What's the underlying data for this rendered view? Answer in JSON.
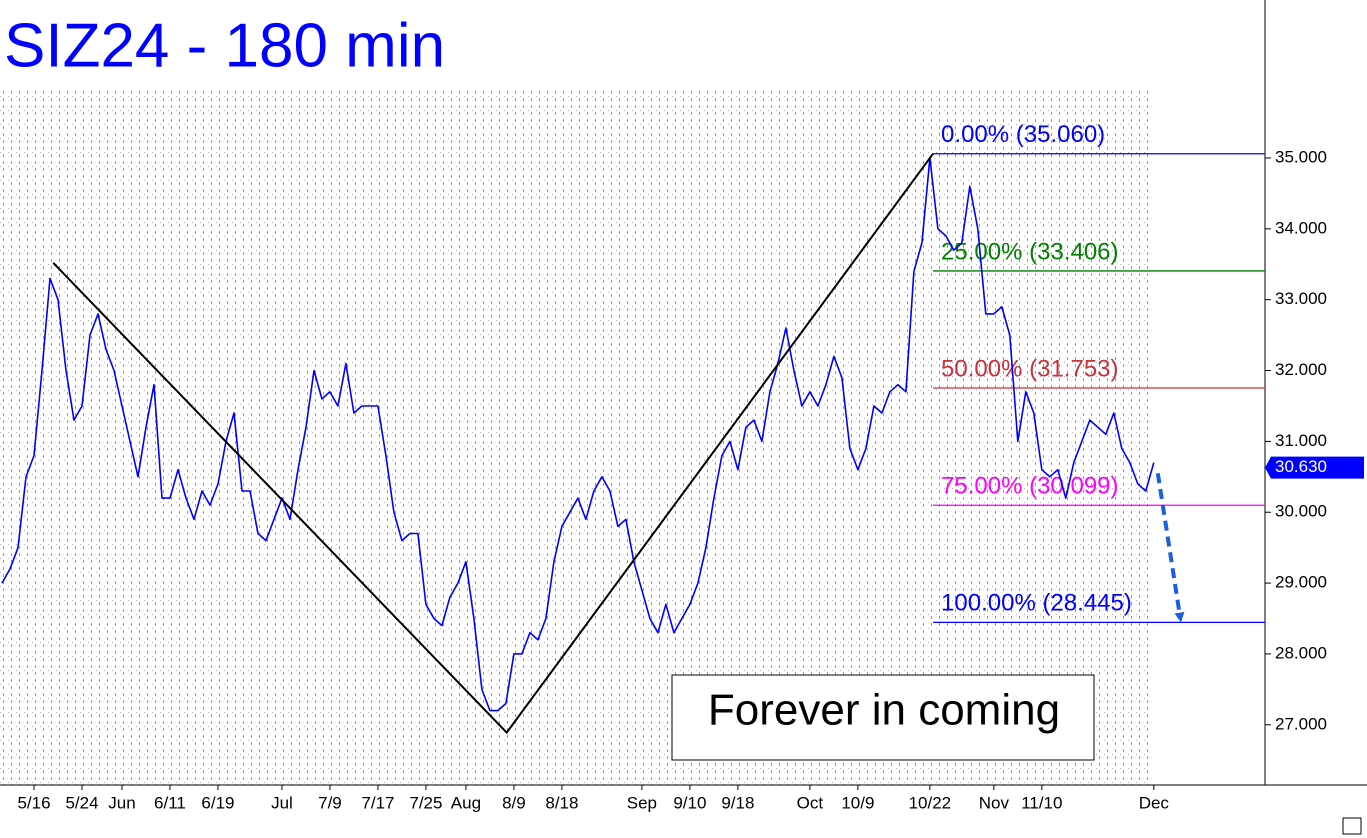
{
  "chart_data": {
    "type": "line",
    "title": "SIZ24 - 180 min",
    "annotation": "Forever in coming",
    "xlim": [
      -0.25,
      157.9
    ],
    "ylim": [
      26.15,
      37.23
    ],
    "yticks": [
      {
        "value": 27,
        "label": "27.000"
      },
      {
        "value": 28,
        "label": "28.000"
      },
      {
        "value": 29,
        "label": "29.000"
      },
      {
        "value": 30,
        "label": "30.000"
      },
      {
        "value": 31,
        "label": "31.000"
      },
      {
        "value": 32,
        "label": "32.000"
      },
      {
        "value": 33,
        "label": "33.000"
      },
      {
        "value": 34,
        "label": "34.000"
      },
      {
        "value": 35,
        "label": "35.000"
      }
    ],
    "xticks": [
      {
        "value": 4,
        "label": "5/16"
      },
      {
        "value": 10,
        "label": "5/24"
      },
      {
        "value": 15,
        "label": "Jun"
      },
      {
        "value": 21,
        "label": "6/11"
      },
      {
        "value": 27,
        "label": "6/19"
      },
      {
        "value": 35,
        "label": "Jul"
      },
      {
        "value": 41,
        "label": "7/9"
      },
      {
        "value": 47,
        "label": "7/17"
      },
      {
        "value": 53,
        "label": "7/25"
      },
      {
        "value": 58,
        "label": "Aug"
      },
      {
        "value": 64,
        "label": "8/9"
      },
      {
        "value": 70,
        "label": "8/18"
      },
      {
        "value": 80,
        "label": "Sep"
      },
      {
        "value": 86,
        "label": "9/10"
      },
      {
        "value": 92,
        "label": "9/18"
      },
      {
        "value": 101,
        "label": "Oct"
      },
      {
        "value": 107,
        "label": "10/9"
      },
      {
        "value": 116,
        "label": "10/22"
      },
      {
        "value": 124,
        "label": "Nov"
      },
      {
        "value": 130,
        "label": "11/10"
      },
      {
        "value": 144,
        "label": "Dec"
      }
    ],
    "series": [
      {
        "color": "#0000ff",
        "values": [
          29.0,
          29.2,
          29.5,
          30.5,
          30.8,
          32.0,
          33.3,
          33.0,
          32.0,
          31.3,
          31.5,
          32.5,
          32.8,
          32.3,
          32.0,
          31.5,
          31.0,
          30.5,
          31.2,
          31.8,
          30.2,
          30.2,
          30.6,
          30.2,
          29.9,
          30.3,
          30.1,
          30.4,
          31.0,
          31.4,
          30.3,
          30.3,
          29.7,
          29.6,
          29.9,
          30.2,
          29.9,
          30.6,
          31.2,
          32.0,
          31.6,
          31.7,
          31.5,
          32.1,
          31.4,
          31.5,
          31.5,
          31.5,
          30.8,
          30.0,
          29.6,
          29.7,
          29.7,
          28.7,
          28.5,
          28.4,
          28.8,
          29.0,
          29.3,
          28.5,
          27.5,
          27.2,
          27.2,
          27.3,
          28.0,
          28.0,
          28.3,
          28.2,
          28.5,
          29.3,
          29.8,
          30.0,
          30.2,
          29.9,
          30.3,
          30.5,
          30.3,
          29.8,
          29.9,
          29.3,
          28.9,
          28.5,
          28.3,
          28.7,
          28.3,
          28.5,
          28.7,
          29.0,
          29.5,
          30.2,
          30.8,
          31.0,
          30.6,
          31.2,
          31.3,
          31.0,
          31.7,
          32.1,
          32.6,
          32.0,
          31.5,
          31.7,
          31.5,
          31.8,
          32.2,
          31.9,
          30.9,
          30.6,
          30.9,
          31.5,
          31.4,
          31.7,
          31.8,
          31.7,
          33.4,
          33.8,
          35.0,
          34.0,
          33.9,
          33.7,
          33.8,
          34.6,
          34.0,
          32.8,
          32.8,
          32.9,
          32.5,
          31.0,
          31.7,
          31.4,
          30.6,
          30.5,
          30.6,
          30.2,
          30.7,
          31.0,
          31.3,
          31.2,
          31.1,
          31.4,
          30.9,
          30.7,
          30.4,
          30.3,
          30.7
        ]
      }
    ],
    "trendline": {
      "color": "#000000",
      "x": [
        6.4,
        63.1,
        116.4
      ],
      "y": [
        33.52,
        26.89,
        35.06
      ]
    },
    "fib_levels": [
      {
        "label": "0.00% (35.060)",
        "value": 35.06,
        "color": "#0000ff"
      },
      {
        "label": "25.00% (33.406)",
        "value": 33.406,
        "color": "#008000"
      },
      {
        "label": "50.00% (31.753)",
        "value": 31.753,
        "color": "#c8323c"
      },
      {
        "label": "75.00% (30.099)",
        "value": 30.099,
        "color": "#ff00ff"
      },
      {
        "label": "100.00% (28.445)",
        "value": 28.445,
        "color": "#0000ff"
      }
    ],
    "fib_start_x": 116.4,
    "last_price": {
      "value": 30.63,
      "label": "30.630",
      "color": "#0000ff"
    },
    "arrow": {
      "color": "#1a5fe0",
      "x": [
        144.5,
        147.3
      ],
      "y": [
        30.55,
        28.4
      ]
    }
  }
}
